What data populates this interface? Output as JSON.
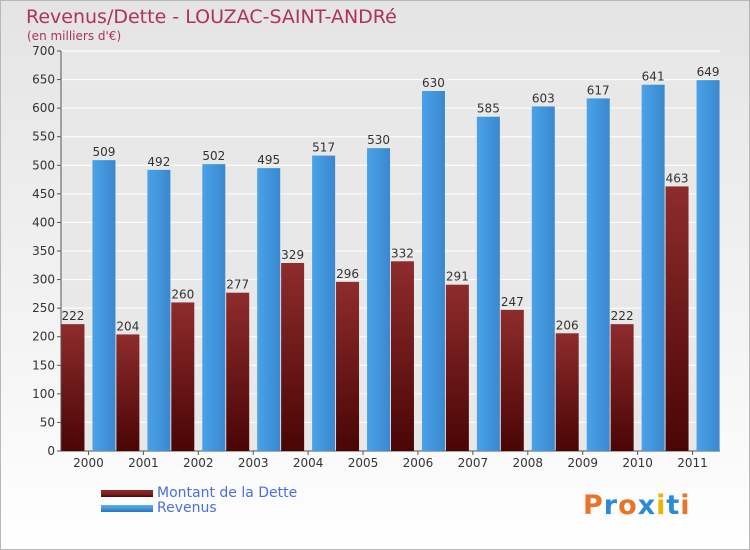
{
  "title": "Revenus/Dette - LOUZAC-SAINT-ANDRé",
  "subtitle": "(en milliers d'€)",
  "colors": {
    "title": "#b03060",
    "legend_text": "#4a6ee0",
    "dette": "#7a1f1f",
    "revenus": "#3d8fd6",
    "grid": "#ffffff",
    "label": "#333333"
  },
  "legend": {
    "dette_label": "Montant de la Dette",
    "revenus_label": "Revenus"
  },
  "logo": {
    "letters": [
      "P",
      "r",
      "o",
      "x",
      "i",
      "t",
      "i"
    ],
    "colors": [
      "#e8742a",
      "#2c8ad6",
      "#e8742a",
      "#2c8ad6",
      "#f0b400",
      "#2c8ad6",
      "#e8742a"
    ]
  },
  "chart_data": {
    "type": "bar",
    "categories": [
      "2000",
      "2001",
      "2002",
      "2003",
      "2004",
      "2005",
      "2006",
      "2007",
      "2008",
      "2009",
      "2010",
      "2011"
    ],
    "series": [
      {
        "name": "Montant de la Dette",
        "values": [
          222,
          204,
          260,
          277,
          329,
          296,
          332,
          291,
          247,
          206,
          222,
          463
        ]
      },
      {
        "name": "Revenus",
        "values": [
          509,
          492,
          502,
          495,
          517,
          530,
          630,
          585,
          603,
          617,
          641,
          649
        ]
      }
    ],
    "y_ticks": [
      0,
      50,
      100,
      150,
      200,
      250,
      300,
      350,
      400,
      450,
      500,
      550,
      600,
      650,
      700
    ],
    "ylim": [
      0,
      700
    ],
    "grid": true,
    "legend_position": "bottom-left"
  }
}
